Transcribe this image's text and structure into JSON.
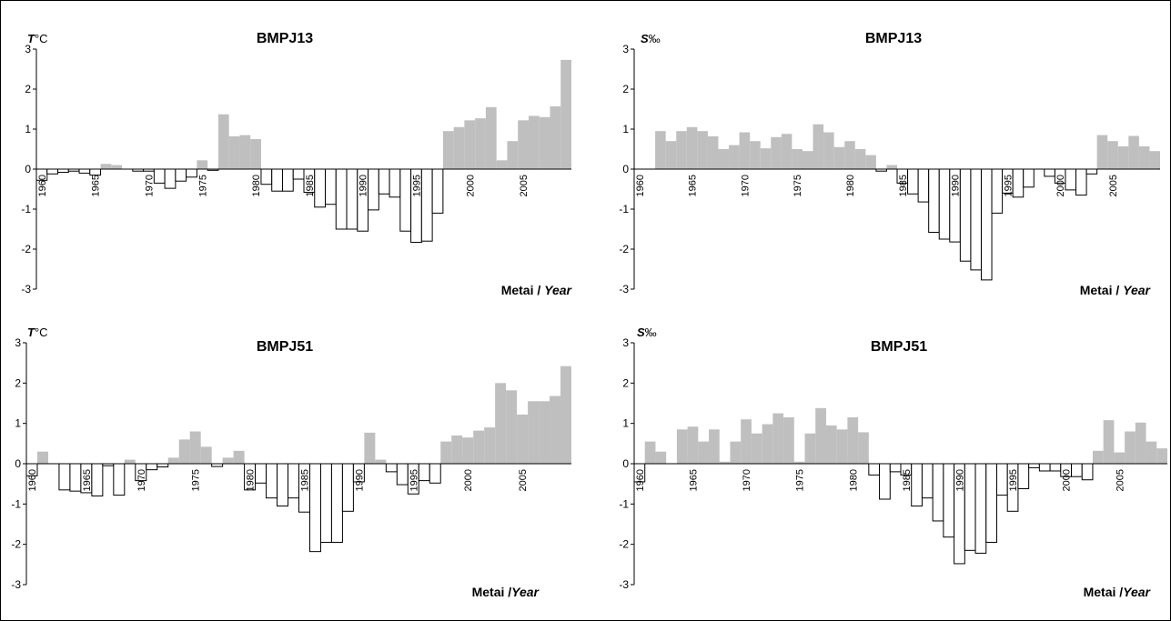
{
  "colors": {
    "positive": "#bfbfbf",
    "negative": "#ffffff",
    "outline": "#000000"
  },
  "chart_data": [
    {
      "type": "bar",
      "title": "BMPJ13",
      "ylabel_symbol": "T",
      "ylabel_unit": "°C",
      "xlabel_prefix": "Metai / ",
      "xlabel_italic": "Year",
      "ylim": [
        -3,
        3
      ],
      "yticks": [
        "3",
        "2",
        "1",
        "0",
        "-1",
        "-2",
        "-3"
      ],
      "year_start": 1960,
      "x_tick_labels": [
        "1960",
        "1965",
        "1970",
        "1975",
        "1980",
        "1985",
        "1990",
        "1995",
        "2000",
        "2005"
      ],
      "values": [
        -0.28,
        -0.12,
        -0.08,
        -0.05,
        -0.1,
        -0.15,
        0.13,
        0.1,
        0.0,
        -0.05,
        -0.05,
        -0.35,
        -0.48,
        -0.3,
        -0.2,
        0.22,
        -0.03,
        1.37,
        0.82,
        0.85,
        0.75,
        -0.38,
        -0.55,
        -0.55,
        -0.25,
        -0.58,
        -0.95,
        -0.88,
        -1.5,
        -1.5,
        -1.55,
        -1.02,
        -0.62,
        -0.7,
        -1.55,
        -1.83,
        -1.8,
        -1.1,
        0.95,
        1.05,
        1.22,
        1.27,
        1.55,
        0.22,
        0.7,
        1.22,
        1.33,
        1.3,
        1.57,
        2.73
      ]
    },
    {
      "type": "bar",
      "title": "BMPJ13",
      "ylabel_symbol": "S",
      "ylabel_unit": "‰",
      "xlabel_prefix": "Metai / ",
      "xlabel_italic": "Year",
      "ylim": [
        -3,
        3
      ],
      "yticks": [
        "3",
        "2",
        "1",
        "0",
        "-1",
        "-2",
        "-3"
      ],
      "year_start": 1960,
      "x_tick_labels": [
        "1960",
        "1965",
        "1970",
        "1975",
        "1980",
        "1985",
        "1990",
        "1995",
        "2000",
        "2005"
      ],
      "values": [
        0.0,
        0.0,
        0.95,
        0.7,
        0.95,
        1.05,
        0.95,
        0.82,
        0.5,
        0.6,
        0.92,
        0.7,
        0.52,
        0.8,
        0.88,
        0.5,
        0.45,
        1.12,
        0.92,
        0.55,
        0.7,
        0.5,
        0.35,
        -0.05,
        0.1,
        -0.35,
        -0.62,
        -0.82,
        -1.58,
        -1.75,
        -1.82,
        -2.3,
        -2.52,
        -2.77,
        -1.1,
        -0.6,
        -0.7,
        -0.45,
        0.0,
        -0.18,
        -0.35,
        -0.52,
        -0.65,
        -0.12,
        0.85,
        0.7,
        0.57,
        0.83,
        0.57,
        0.45
      ]
    },
    {
      "type": "bar",
      "title": "BMPJ51",
      "ylabel_symbol": "T",
      "ylabel_unit": "°C",
      "xlabel_prefix": "Metai /",
      "xlabel_italic": "Year",
      "ylim": [
        -3,
        3
      ],
      "yticks": [
        "3",
        "2",
        "1",
        "0",
        "-1",
        "-2",
        "-3"
      ],
      "year_start": 1960,
      "x_tick_labels": [
        "1960",
        "1965",
        "1970",
        "1975",
        "1980",
        "1985",
        "1990",
        "1995",
        "2000",
        "2005"
      ],
      "values": [
        -0.3,
        0.3,
        0.0,
        -0.65,
        -0.68,
        -0.72,
        -0.8,
        -0.05,
        -0.78,
        0.1,
        -0.42,
        -0.15,
        -0.08,
        0.15,
        0.6,
        0.8,
        0.42,
        -0.07,
        0.15,
        0.32,
        -0.65,
        -0.48,
        -0.85,
        -1.05,
        -0.85,
        -1.2,
        -2.18,
        -1.95,
        -1.95,
        -1.18,
        -0.45,
        0.77,
        0.1,
        -0.2,
        -0.52,
        -0.75,
        -0.42,
        -0.48,
        0.55,
        0.7,
        0.65,
        0.82,
        0.9,
        2.0,
        1.82,
        1.22,
        1.55,
        1.55,
        1.68,
        2.42
      ]
    },
    {
      "type": "bar",
      "title": "BMPJ51",
      "ylabel_symbol": "S",
      "ylabel_unit": "‰",
      "xlabel_prefix": "Metai /",
      "xlabel_italic": "Year",
      "ylim": [
        -3,
        3
      ],
      "yticks": [
        "3",
        "2",
        "1",
        "0",
        "-1",
        "-2",
        "-3"
      ],
      "year_start": 1960,
      "x_tick_labels": [
        "1960",
        "1965",
        "1970",
        "1975",
        "1980",
        "1985",
        "1990",
        "1995",
        "2000",
        "2005"
      ],
      "values": [
        -0.45,
        0.55,
        0.3,
        0.0,
        0.85,
        0.92,
        0.55,
        0.85,
        0.05,
        0.55,
        1.1,
        0.75,
        0.98,
        1.25,
        1.15,
        0.05,
        0.75,
        1.38,
        0.95,
        0.85,
        1.15,
        0.78,
        -0.28,
        -0.88,
        -0.2,
        -0.28,
        -1.05,
        -0.85,
        -1.42,
        -1.82,
        -2.48,
        -2.15,
        -2.22,
        -1.95,
        -0.78,
        -1.18,
        -0.62,
        -0.1,
        -0.18,
        -0.18,
        -0.32,
        -0.32,
        -0.4,
        0.32,
        1.08,
        0.28,
        0.8,
        1.02,
        0.55,
        0.38
      ]
    }
  ]
}
